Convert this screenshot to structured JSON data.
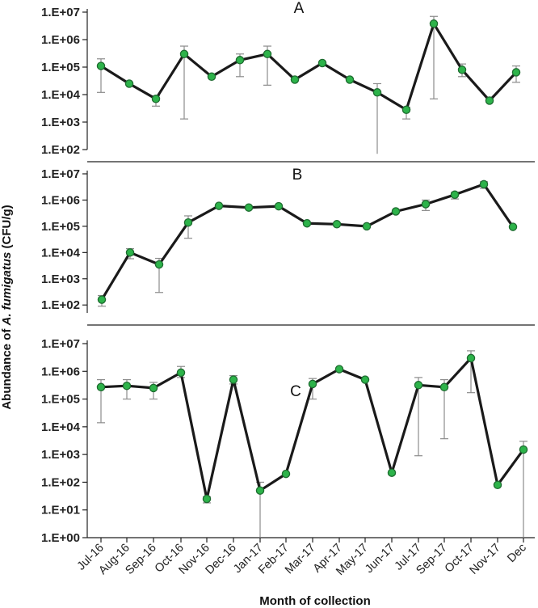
{
  "chart_data": {
    "type": "line",
    "y_scale": "log",
    "ylabel": {
      "prefix": "Abundance of ",
      "italic": "A. fumigatus",
      "suffix": " (CFU/g)"
    },
    "xlabel": "Month of collection",
    "x_tick_labels": [
      "Jul-16",
      "Aug-16",
      "Sep-16",
      "Oct-16",
      "Nov-16",
      "Dec-16",
      "Jan-17",
      "Feb-17",
      "Mar-17",
      "Apr-17",
      "May-17",
      "Jun-17",
      "Jul-17",
      "Sep-17",
      "Oct-17",
      "Nov-17",
      "Dec"
    ],
    "colors": {
      "line": "#1a1a1a",
      "marker_fill": "#2db34a",
      "marker_edge": "#1e6b30",
      "error_bar": "#8c8c8c"
    },
    "panels": [
      {
        "label": "A",
        "y_tick_labels": [
          "1.E+02",
          "1.E+03",
          "1.E+04",
          "1.E+05",
          "1.E+06",
          "1.E+07"
        ],
        "ylim": [
          100,
          10000000
        ],
        "points": [
          {
            "value": 110000,
            "err_low": 12000,
            "err_high": 200000
          },
          {
            "value": 25000
          },
          {
            "value": 7000,
            "err_low": 3800,
            "err_high": 9000
          },
          {
            "value": 300000,
            "err_low": 1300,
            "err_high": 580000
          },
          {
            "value": 45000
          },
          {
            "value": 180000,
            "err_low": 45000,
            "err_high": 300000
          },
          {
            "value": 300000,
            "err_low": 22000,
            "err_high": 580000
          },
          {
            "value": 35000
          },
          {
            "value": 140000
          },
          {
            "value": 35000
          },
          {
            "value": 12000,
            "err_low": 70,
            "err_high": 25000
          },
          {
            "value": 2800,
            "err_low": 1300,
            "err_high": 3500
          },
          {
            "value": 3800000,
            "err_low": 7000,
            "err_high": 7000000
          },
          {
            "value": 80000,
            "err_low": 45000,
            "err_high": 130000
          },
          {
            "value": 6000
          },
          {
            "value": 65000,
            "err_low": 28000,
            "err_high": 110000
          }
        ]
      },
      {
        "label": "B",
        "y_tick_labels": [
          "1.E+02",
          "1.E+03",
          "1.E+04",
          "1.E+05",
          "1.E+06",
          "1.E+07"
        ],
        "ylim": [
          50,
          10000000
        ],
        "points": [
          {
            "value": 160,
            "err_low": 90,
            "err_high": 230
          },
          {
            "value": 10000,
            "err_low": 5800,
            "err_high": 14000
          },
          {
            "value": 3500,
            "err_low": 300,
            "err_high": 6000
          },
          {
            "value": 140000,
            "err_low": 35000,
            "err_high": 250000
          },
          {
            "value": 600000
          },
          {
            "value": 520000
          },
          {
            "value": 580000
          },
          {
            "value": 130000
          },
          {
            "value": 120000
          },
          {
            "value": 100000
          },
          {
            "value": 370000
          },
          {
            "value": 700000,
            "err_low": 400000,
            "err_high": 1000000
          },
          {
            "value": 1600000,
            "err_low": 1100000,
            "err_high": 2000000
          },
          {
            "value": 4000000,
            "err_low": 2800000,
            "err_high": 5000000
          },
          {
            "value": 95000
          }
        ]
      },
      {
        "label": "C",
        "y_tick_labels": [
          "1.E+00",
          "1.E+01",
          "1.E+02",
          "1.E+03",
          "1.E+04",
          "1.E+05",
          "1.E+06",
          "1.E+07"
        ],
        "ylim": [
          1,
          10000000
        ],
        "points": [
          {
            "value": 270000,
            "err_low": 14000,
            "err_high": 500000
          },
          {
            "value": 300000,
            "err_low": 100000,
            "err_high": 500000
          },
          {
            "value": 250000,
            "err_low": 100000,
            "err_high": 400000
          },
          {
            "value": 900000,
            "err_low": 600000,
            "err_high": 1500000
          },
          {
            "value": 25,
            "err_low": 18,
            "err_high": 30
          },
          {
            "value": 500000,
            "err_low": 350000,
            "err_high": 700000
          },
          {
            "value": 50,
            "err_low": 1,
            "err_high": 100
          },
          {
            "value": 200
          },
          {
            "value": 350000,
            "err_low": 100000,
            "err_high": 550000
          },
          {
            "value": 1200000
          },
          {
            "value": 500000
          },
          {
            "value": 220
          },
          {
            "value": 320000,
            "err_low": 900,
            "err_high": 600000
          },
          {
            "value": 270000,
            "err_low": 3700,
            "err_high": 500000
          },
          {
            "value": 3000000,
            "err_low": 170000,
            "err_high": 5500000
          },
          {
            "value": 80
          },
          {
            "value": 1500,
            "err_low": 1,
            "err_high": 3000
          }
        ]
      }
    ]
  }
}
